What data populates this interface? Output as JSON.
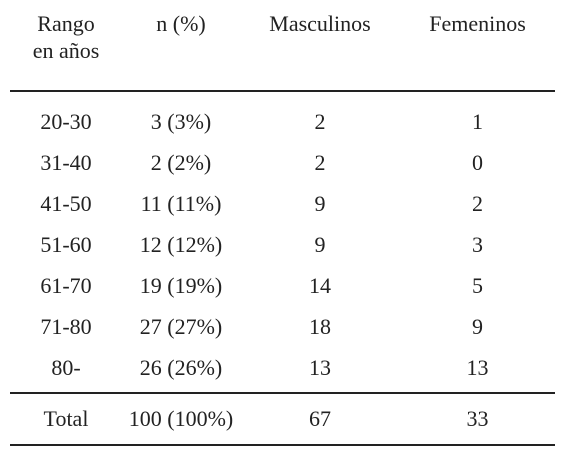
{
  "table": {
    "headers": {
      "range_line1": "Rango",
      "range_line2": "en años",
      "n": "n (%)",
      "male": "Masculinos",
      "female": "Femeninos"
    },
    "rows": [
      {
        "range": "20-30",
        "n": "3 (3%)",
        "male": "2",
        "female": "1"
      },
      {
        "range": "31-40",
        "n": "2 (2%)",
        "male": "2",
        "female": "0"
      },
      {
        "range": "41-50",
        "n": "11 (11%)",
        "male": "9",
        "female": "2"
      },
      {
        "range": "51-60",
        "n": "12 (12%)",
        "male": "9",
        "female": "3"
      },
      {
        "range": "61-70",
        "n": "19 (19%)",
        "male": "14",
        "female": "5"
      },
      {
        "range": "71-80",
        "n": "27 (27%)",
        "male": "18",
        "female": "9"
      },
      {
        "range": "80-",
        "n": "26 (26%)",
        "male": "13",
        "female": "13"
      }
    ],
    "total": {
      "range": "Total",
      "n": "100 (100%)",
      "male": "67",
      "female": "33"
    }
  }
}
